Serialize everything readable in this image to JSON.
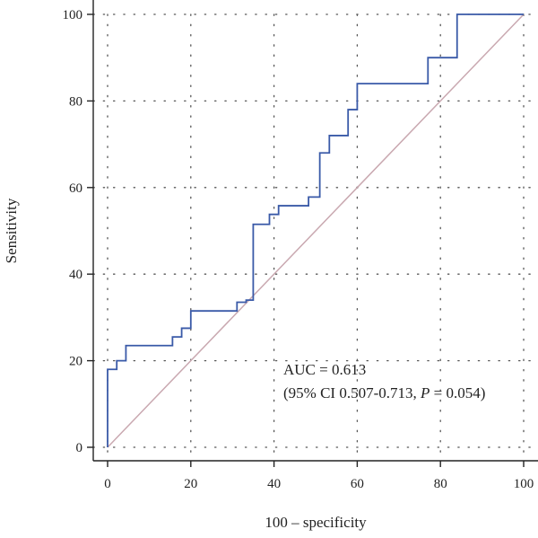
{
  "chart_data": {
    "type": "line",
    "subtype": "roc-curve",
    "xlabel": "100 – specificity",
    "ylabel": "Sensitivity",
    "xlim": [
      0,
      100
    ],
    "ylim": [
      0,
      100
    ],
    "xticks": [
      "0",
      "20",
      "40",
      "60",
      "80",
      "100"
    ],
    "yticks": [
      "0",
      "20",
      "40",
      "60",
      "80",
      "100"
    ],
    "grid": "dotted",
    "annotation": {
      "line1": "AUC = 0.613",
      "line2_prefix": "(95% CI 0.507-0.713, ",
      "line2_p": "P",
      "line2_suffix": " = 0.054)"
    },
    "colors": {
      "roc": "#3a5aa8",
      "reference": "#c9a8b0",
      "axis": "#222222",
      "grid": "#555555"
    },
    "series": [
      {
        "x": [
          0,
          0,
          2.2,
          2.2,
          4.4,
          4.4,
          15.6,
          15.6,
          17.8,
          17.8,
          20,
          20,
          31.1,
          31.1,
          33.3,
          33.3,
          35.0,
          35.0,
          38.9,
          38.9,
          41.1,
          41.1,
          48.3,
          48.3,
          51.0,
          51.0,
          53.3,
          53.3,
          57.8,
          57.8,
          60.0,
          60.0,
          77.0,
          77.0,
          84.0,
          84.0,
          100
        ],
        "y": [
          0,
          18,
          18,
          20,
          20,
          23.5,
          23.5,
          25.5,
          25.5,
          27.5,
          27.5,
          31.5,
          31.5,
          33.5,
          33.5,
          34,
          34,
          51.5,
          51.5,
          53.8,
          53.8,
          55.8,
          55.8,
          57.8,
          57.8,
          68,
          68,
          72,
          72,
          78,
          78,
          84,
          84,
          90,
          90,
          100,
          100
        ]
      },
      {
        "x": [
          0,
          100
        ],
        "y": [
          0,
          100
        ]
      }
    ]
  }
}
